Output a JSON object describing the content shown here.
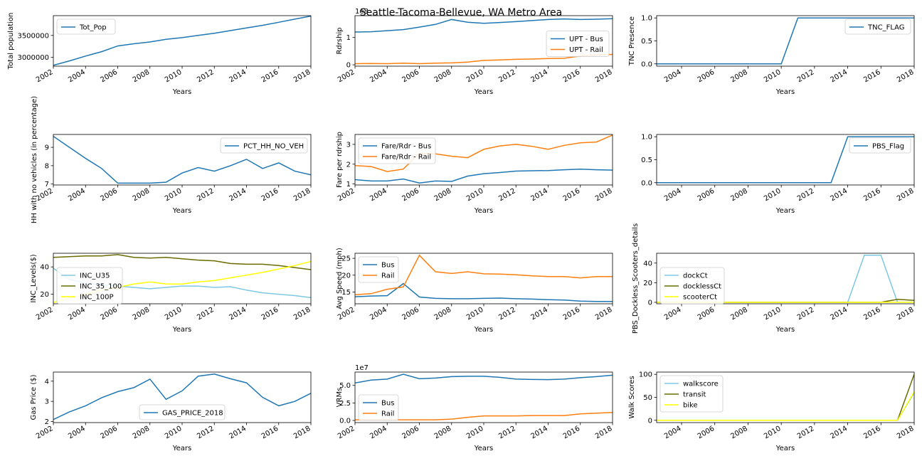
{
  "figure": {
    "suptitle": "Seattle-Tacoma-Bellevue, WA Metro Area"
  },
  "chart_data": [
    {
      "id": "p_totpop",
      "type": "line",
      "xlabel": "Years",
      "ylabel": "Total population",
      "xlim": [
        2002,
        2018
      ],
      "ylim": [
        2800000,
        3950000
      ],
      "xticks": [
        2002,
        2004,
        2006,
        2008,
        2010,
        2012,
        2014,
        2016,
        2018
      ],
      "yticks": [
        3000000,
        3500000
      ],
      "ytick_labels": [
        "3000000",
        "3500000"
      ],
      "legend_loc": "upper-left",
      "x": [
        2002,
        2003,
        2004,
        2005,
        2006,
        2007,
        2008,
        2009,
        2010,
        2011,
        2012,
        2013,
        2014,
        2015,
        2016,
        2017,
        2018
      ],
      "series": [
        {
          "name": "Tot_Pop",
          "color": "#1f77b4",
          "values": [
            2820000,
            2920000,
            3030000,
            3130000,
            3260000,
            3310000,
            3350000,
            3410000,
            3450000,
            3500000,
            3550000,
            3610000,
            3670000,
            3730000,
            3800000,
            3870000,
            3940000
          ]
        }
      ]
    },
    {
      "id": "p_upt",
      "type": "line",
      "xlabel": "Years",
      "ylabel": "Rdrship",
      "xlim": [
        2002,
        2018
      ],
      "ylim": [
        -0.05,
        1.8
      ],
      "xticks": [
        2002,
        2004,
        2006,
        2008,
        2010,
        2012,
        2014,
        2016,
        2018
      ],
      "yticks": [
        0,
        1
      ],
      "ytick_labels": [
        "0",
        "1"
      ],
      "offset_text": "1e8",
      "legend_loc": "center-right",
      "x": [
        2002,
        2003,
        2004,
        2005,
        2006,
        2007,
        2008,
        2009,
        2010,
        2011,
        2012,
        2013,
        2014,
        2015,
        2016,
        2017,
        2018
      ],
      "series": [
        {
          "name": "UPT - Bus",
          "color": "#1f77b4",
          "values": [
            1.2,
            1.21,
            1.25,
            1.29,
            1.38,
            1.48,
            1.66,
            1.56,
            1.52,
            1.55,
            1.58,
            1.62,
            1.66,
            1.68,
            1.66,
            1.67,
            1.69
          ]
        },
        {
          "name": "UPT - Rail",
          "color": "#ff7f0e",
          "values": [
            0.04,
            0.05,
            0.04,
            0.06,
            0.04,
            0.06,
            0.07,
            0.1,
            0.16,
            0.18,
            0.2,
            0.21,
            0.23,
            0.24,
            0.32,
            0.36,
            0.38
          ]
        }
      ]
    },
    {
      "id": "p_tnc",
      "type": "line",
      "xlabel": "Years",
      "ylabel": "TNC Presence",
      "xlim": [
        2002.5,
        2018
      ],
      "ylim": [
        -0.05,
        1.05
      ],
      "xticks": [
        2002,
        2004,
        2006,
        2008,
        2010,
        2012,
        2014,
        2016,
        2018
      ],
      "yticks": [
        0,
        0.5,
        1.0
      ],
      "ytick_labels": [
        "0.0",
        "0.5",
        "1.0"
      ],
      "legend_loc": "upper-right",
      "x": [
        2002,
        2003,
        2004,
        2005,
        2006,
        2007,
        2008,
        2009,
        2010,
        2011,
        2012,
        2013,
        2014,
        2015,
        2016,
        2017,
        2018
      ],
      "series": [
        {
          "name": "TNC_FLAG",
          "color": "#1f77b4",
          "values": [
            0,
            0,
            0,
            0,
            0,
            0,
            0,
            0,
            0,
            1,
            1,
            1,
            1,
            1,
            1,
            1,
            1
          ]
        }
      ]
    },
    {
      "id": "p_noveh",
      "type": "line",
      "xlabel": "Years",
      "ylabel": "HH with no vehicles (in percentage)",
      "xlim": [
        2002,
        2018
      ],
      "ylim": [
        6.95,
        9.7
      ],
      "xticks": [
        2002,
        2004,
        2006,
        2008,
        2010,
        2012,
        2014,
        2016,
        2018
      ],
      "yticks": [
        7,
        8,
        9
      ],
      "ytick_labels": [
        "7",
        "8",
        "9"
      ],
      "legend_loc": "upper-right",
      "x": [
        2002,
        2003,
        2004,
        2005,
        2006,
        2007,
        2008,
        2009,
        2010,
        2011,
        2012,
        2013,
        2014,
        2015,
        2016,
        2017,
        2018
      ],
      "series": [
        {
          "name": "PCT_HH_NO_VEH",
          "color": "#1f77b4",
          "values": [
            9.6,
            9.0,
            8.4,
            7.85,
            7.05,
            7.05,
            7.05,
            7.1,
            7.6,
            7.9,
            7.7,
            8.0,
            8.35,
            7.85,
            8.15,
            7.7,
            7.5
          ]
        }
      ]
    },
    {
      "id": "p_fare",
      "type": "line",
      "xlabel": "Years",
      "ylabel": "Fare per rdrship",
      "xlim": [
        2002,
        2018
      ],
      "ylim": [
        0.95,
        3.5
      ],
      "xticks": [
        2002,
        2004,
        2006,
        2008,
        2010,
        2012,
        2014,
        2016,
        2018
      ],
      "yticks": [
        1,
        2,
        3
      ],
      "ytick_labels": [
        "1",
        "2",
        "3"
      ],
      "legend_loc": "upper-left",
      "x": [
        2002,
        2003,
        2004,
        2005,
        2006,
        2007,
        2008,
        2009,
        2010,
        2011,
        2012,
        2013,
        2014,
        2015,
        2016,
        2017,
        2018
      ],
      "series": [
        {
          "name": "Fare/Rdr - Bus",
          "color": "#1f77b4",
          "values": [
            1.22,
            1.15,
            1.15,
            1.25,
            1.05,
            1.15,
            1.13,
            1.4,
            1.52,
            1.58,
            1.65,
            1.67,
            1.68,
            1.72,
            1.75,
            1.72,
            1.7
          ]
        },
        {
          "name": "Fare/Rdr - Rail",
          "color": "#ff7f0e",
          "values": [
            1.93,
            1.88,
            1.63,
            1.75,
            2.55,
            2.52,
            2.4,
            2.33,
            2.75,
            2.92,
            3.0,
            2.9,
            2.75,
            2.95,
            3.08,
            3.12,
            3.47
          ]
        }
      ]
    },
    {
      "id": "p_pbs",
      "type": "line",
      "xlabel": "Years",
      "ylabel": "",
      "xlim": [
        2002.5,
        2018
      ],
      "ylim": [
        -0.05,
        1.05
      ],
      "xticks": [
        2004,
        2006,
        2008,
        2010,
        2012,
        2014,
        2016,
        2018
      ],
      "yticks": [
        0,
        0.5,
        1.0
      ],
      "ytick_labels": [
        "0.0",
        "0.5",
        "1.0"
      ],
      "legend_loc": "upper-right",
      "x": [
        2002,
        2003,
        2004,
        2005,
        2006,
        2007,
        2008,
        2009,
        2010,
        2011,
        2012,
        2013,
        2014,
        2015,
        2016,
        2017,
        2018
      ],
      "series": [
        {
          "name": "PBS_Flag",
          "color": "#1f77b4",
          "values": [
            0,
            0,
            0,
            0,
            0,
            0,
            0,
            0,
            0,
            0,
            0,
            0,
            1,
            1,
            1,
            1,
            1
          ]
        }
      ]
    },
    {
      "id": "p_inc",
      "type": "line",
      "xlabel": "Years",
      "ylabel": "INC_Levels($)",
      "xlim": [
        2002,
        2018
      ],
      "ylim": [
        13,
        50
      ],
      "xticks": [
        2002,
        2004,
        2006,
        2008,
        2010,
        2012,
        2014,
        2016,
        2018
      ],
      "yticks": [
        20,
        40
      ],
      "ytick_labels": [
        "20",
        "40"
      ],
      "legend_loc": "center-left",
      "x": [
        2002,
        2003,
        2004,
        2005,
        2006,
        2007,
        2008,
        2009,
        2010,
        2011,
        2012,
        2013,
        2014,
        2015,
        2016,
        2017,
        2018
      ],
      "series": [
        {
          "name": "INC_U35",
          "color": "#7ec8e3",
          "values": [
            39,
            31,
            28,
            27,
            26,
            25,
            24,
            25,
            26,
            26,
            25,
            25.5,
            23,
            21,
            20,
            19,
            17.5
          ]
        },
        {
          "name": "INC_35_100",
          "color": "#6b6b00",
          "values": [
            47,
            47.5,
            48,
            48,
            49,
            47,
            46.5,
            47,
            46,
            45,
            44.5,
            42.5,
            42,
            42,
            41,
            39.5,
            38
          ]
        },
        {
          "name": "INC_100P",
          "color": "#ffff00",
          "values": [
            14,
            17,
            20,
            23,
            25,
            27.5,
            29,
            27.5,
            27.5,
            29,
            30,
            32,
            34,
            36,
            38.5,
            41,
            44
          ]
        }
      ]
    },
    {
      "id": "p_speed",
      "type": "line",
      "xlabel": "Years",
      "ylabel": "Avg Speed (mph)",
      "xlim": [
        2002,
        2018
      ],
      "ylim": [
        11.5,
        26.5
      ],
      "xticks": [
        2002,
        2004,
        2006,
        2008,
        2010,
        2012,
        2014,
        2016,
        2018
      ],
      "yticks": [
        15,
        20,
        25
      ],
      "ytick_labels": [
        "15",
        "20",
        "25"
      ],
      "legend_loc": "upper-left",
      "x": [
        2002,
        2003,
        2004,
        2005,
        2006,
        2007,
        2008,
        2009,
        2010,
        2011,
        2012,
        2013,
        2014,
        2015,
        2016,
        2017,
        2018
      ],
      "series": [
        {
          "name": "Bus",
          "color": "#1f77b4",
          "values": [
            13.6,
            13.8,
            13.9,
            17.5,
            13.5,
            13.1,
            13.0,
            13.0,
            13.1,
            13.2,
            13.0,
            12.9,
            12.7,
            12.6,
            12.3,
            12.2,
            12.2
          ]
        },
        {
          "name": "Rail",
          "color": "#ff7f0e",
          "values": [
            14.2,
            14.5,
            15.8,
            16.5,
            25.9,
            21.0,
            20.5,
            21.0,
            20.4,
            20.3,
            20.1,
            19.8,
            19.6,
            19.6,
            19.2,
            19.6,
            19.6
          ]
        }
      ]
    },
    {
      "id": "p_scooter",
      "type": "line",
      "xlabel": "Years",
      "ylabel": "PBS_Dockless_Scooters_details",
      "xlim": [
        2002.5,
        2018
      ],
      "ylim": [
        -1.5,
        50
      ],
      "xticks": [
        2004,
        2006,
        2008,
        2010,
        2012,
        2014,
        2016,
        2018
      ],
      "yticks": [
        0,
        20,
        40
      ],
      "ytick_labels": [
        "0",
        "20",
        "40"
      ],
      "legend_loc": "center-left",
      "x": [
        2002,
        2003,
        2004,
        2005,
        2006,
        2007,
        2008,
        2009,
        2010,
        2011,
        2012,
        2013,
        2014,
        2015,
        2016,
        2017,
        2018
      ],
      "series": [
        {
          "name": "dockCt",
          "color": "#7ec8e3",
          "values": [
            0,
            0,
            0,
            0,
            0,
            0,
            0,
            0,
            0,
            0,
            0,
            0,
            0,
            48,
            48,
            0,
            0
          ]
        },
        {
          "name": "docklessCt",
          "color": "#6b6b00",
          "values": [
            0,
            0,
            0,
            0,
            0,
            0,
            0,
            0,
            0,
            0,
            0,
            0,
            0,
            0,
            0,
            3,
            2
          ]
        },
        {
          "name": "scooterCt",
          "color": "#ffff00",
          "values": [
            0,
            0,
            0,
            0,
            0,
            0,
            0,
            0,
            0,
            0,
            0,
            0,
            0,
            0,
            0,
            0,
            0
          ]
        }
      ]
    },
    {
      "id": "p_gas",
      "type": "line",
      "xlabel": "Years",
      "ylabel": "Gas Price ($)",
      "xlim": [
        2002,
        2018
      ],
      "ylim": [
        1.95,
        4.45
      ],
      "xticks": [
        2002,
        2004,
        2006,
        2008,
        2010,
        2012,
        2014,
        2016,
        2018
      ],
      "yticks": [
        2,
        3,
        4
      ],
      "ytick_labels": [
        "2",
        "3",
        "4"
      ],
      "legend_loc": "lower-center",
      "x": [
        2002,
        2003,
        2004,
        2005,
        2006,
        2007,
        2008,
        2009,
        2010,
        2011,
        2012,
        2013,
        2014,
        2015,
        2016,
        2017,
        2018
      ],
      "series": [
        {
          "name": "GAS_PRICE_2018",
          "color": "#1f77b4",
          "values": [
            2.1,
            2.48,
            2.78,
            3.18,
            3.48,
            3.68,
            4.1,
            3.1,
            3.52,
            4.25,
            4.35,
            4.12,
            3.92,
            3.2,
            2.78,
            3.0,
            3.4
          ]
        }
      ]
    },
    {
      "id": "p_vrm",
      "type": "line",
      "xlabel": "Years",
      "ylabel": "VRMs",
      "xlim": [
        2002,
        2018
      ],
      "ylim": [
        -0.3,
        6.9
      ],
      "xticks": [
        2002,
        2004,
        2006,
        2008,
        2010,
        2012,
        2014,
        2016,
        2018
      ],
      "yticks": [
        0,
        2.5,
        5.0
      ],
      "ytick_labels": [
        "0.0",
        "2.5",
        "5.0"
      ],
      "offset_text": "1e7",
      "legend_loc": "lower-left",
      "x": [
        2002,
        2003,
        2004,
        2005,
        2006,
        2007,
        2008,
        2009,
        2010,
        2011,
        2012,
        2013,
        2014,
        2015,
        2016,
        2017,
        2018
      ],
      "series": [
        {
          "name": "Bus",
          "color": "#1f77b4",
          "values": [
            5.35,
            5.75,
            5.9,
            6.6,
            5.95,
            6.05,
            6.25,
            6.3,
            6.3,
            6.15,
            5.9,
            5.85,
            5.82,
            5.9,
            6.1,
            6.25,
            6.45
          ]
        },
        {
          "name": "Rail",
          "color": "#ff7f0e",
          "values": [
            0.1,
            0.1,
            0.1,
            0.1,
            0.1,
            0.1,
            0.2,
            0.45,
            0.65,
            0.65,
            0.65,
            0.7,
            0.7,
            0.7,
            0.95,
            1.05,
            1.15
          ]
        }
      ]
    },
    {
      "id": "p_walk",
      "type": "line",
      "xlabel": "Years",
      "ylabel": "Walk Scores",
      "xlim": [
        2002.5,
        2018
      ],
      "ylim": [
        -5,
        105
      ],
      "xticks": [
        2004,
        2006,
        2008,
        2010,
        2012,
        2014,
        2016,
        2018
      ],
      "yticks": [
        0,
        50,
        100
      ],
      "ytick_labels": [
        "0",
        "50",
        "100"
      ],
      "legend_loc": "upper-left",
      "x": [
        2002,
        2003,
        2004,
        2005,
        2006,
        2007,
        2008,
        2009,
        2010,
        2011,
        2012,
        2013,
        2014,
        2015,
        2016,
        2017,
        2018
      ],
      "series": [
        {
          "name": "walkscore",
          "color": "#7ec8e3",
          "values": [
            0,
            0,
            0,
            0,
            0,
            0,
            0,
            0,
            0,
            0,
            0,
            0,
            0,
            0,
            0,
            0,
            60
          ]
        },
        {
          "name": "transit",
          "color": "#6b6b00",
          "values": [
            0,
            0,
            0,
            0,
            0,
            0,
            0,
            0,
            0,
            0,
            0,
            0,
            0,
            0,
            0,
            0,
            100
          ]
        },
        {
          "name": "bike",
          "color": "#ffff00",
          "values": [
            0,
            0,
            0,
            0,
            0,
            0,
            0,
            0,
            0,
            0,
            0,
            0,
            0,
            0,
            0,
            0,
            62
          ]
        }
      ]
    }
  ]
}
